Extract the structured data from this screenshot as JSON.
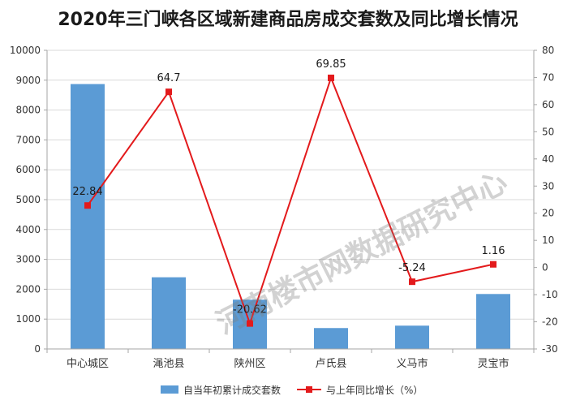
{
  "chart_data": {
    "type": "bar",
    "title": "2020年三门峡各区域新建商品房成交套数及同比增长情况",
    "categories": [
      "中心城区",
      "渑池县",
      "陕州区",
      "卢氏县",
      "义马市",
      "灵宝市"
    ],
    "series": [
      {
        "name": "自当年初累计成交套数",
        "type": "bar",
        "axis": "left",
        "color": "#5b9bd5",
        "values": [
          8870,
          2400,
          1650,
          700,
          780,
          1840
        ]
      },
      {
        "name": "与上年同比增长（%）",
        "type": "line",
        "axis": "right",
        "color": "#e31a1c",
        "values": [
          22.84,
          64.7,
          -20.62,
          69.85,
          -5.24,
          1.16
        ],
        "labels": [
          "22.84",
          "64.7",
          "-20.62",
          "69.85",
          "-5.24",
          "1.16"
        ]
      }
    ],
    "y_left": {
      "min": 0,
      "max": 10000,
      "ticks": [
        "0",
        "1000",
        "2000",
        "3000",
        "4000",
        "5000",
        "6000",
        "7000",
        "8000",
        "9000",
        "10000"
      ]
    },
    "y_right": {
      "min": -30,
      "max": 80,
      "ticks": [
        "-30",
        "-20",
        "-10",
        "0",
        "10",
        "20",
        "30",
        "40",
        "50",
        "60",
        "70",
        "80"
      ]
    },
    "grid": true,
    "legend_position": "bottom",
    "watermark": "河南楼市网数据研究中心"
  }
}
